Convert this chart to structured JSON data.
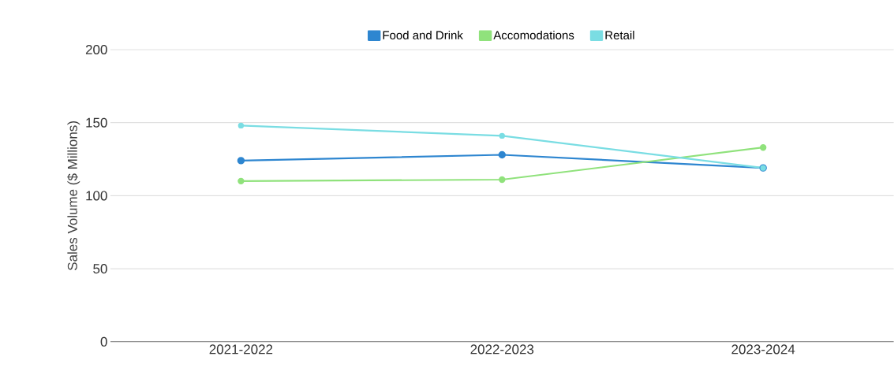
{
  "chart_data": {
    "type": "line",
    "ylabel": "Sales  Volume ($ Millions)",
    "categories": [
      "2021-2022",
      "2022-2023",
      "2023-2024"
    ],
    "series": [
      {
        "name": "Food and Drink",
        "color": "#2e86d0",
        "values": [
          124,
          128,
          119
        ]
      },
      {
        "name": "Accomodations",
        "color": "#90e27c",
        "values": [
          110,
          111,
          133
        ]
      },
      {
        "name": "Retail",
        "color": "#7adde3",
        "values": [
          148,
          141,
          119
        ]
      }
    ],
    "ylim": [
      0,
      200
    ],
    "yticks": [
      0,
      50,
      100,
      150,
      200
    ],
    "grid": "y",
    "legend": "top",
    "marker": "circle",
    "line_style": "solid"
  }
}
